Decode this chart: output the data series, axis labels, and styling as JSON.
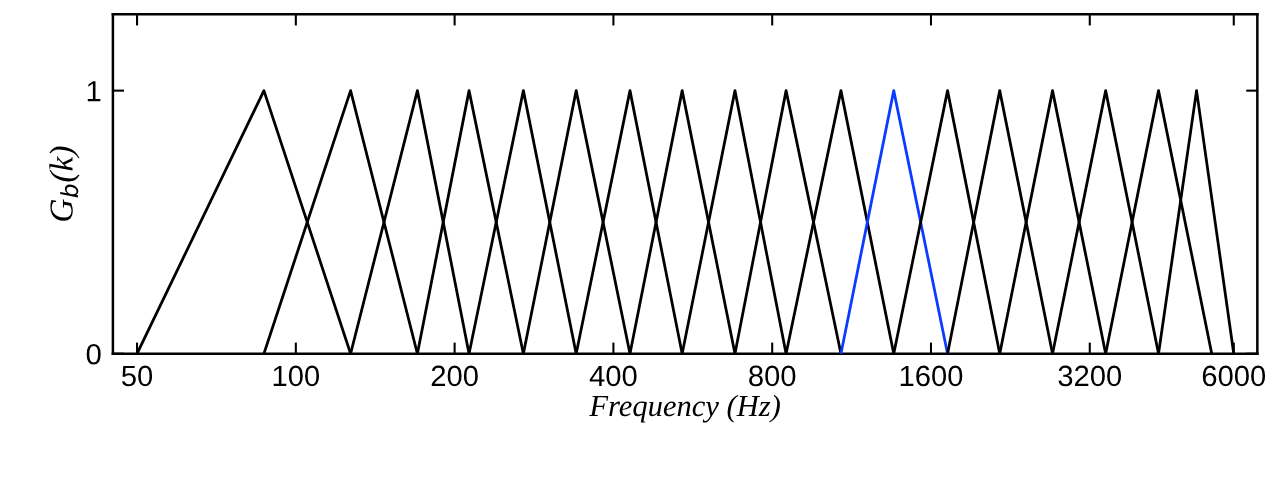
{
  "chart_data": {
    "type": "line",
    "xlabel": "Frequency (Hz)",
    "ylabel": "G$_{b}$(k)",
    "log": "x",
    "xlim": [
      45,
      6650
    ],
    "xticks": [
      50,
      100,
      200,
      400,
      800,
      1600,
      3200,
      6000
    ],
    "ylim": [
      0,
      1.29
    ],
    "yticks": [
      0,
      1
    ],
    "grid": false,
    "legend": false,
    "marker": "none",
    "line_style": "solid",
    "series": [
      {
        "color": "#000000",
        "x": [
          50,
          87,
          127
        ],
        "values": [
          0,
          1,
          0
        ]
      },
      {
        "color": "#000000",
        "x": [
          87,
          127,
          170
        ],
        "values": [
          0,
          1,
          0
        ]
      },
      {
        "color": "#000000",
        "x": [
          127,
          170,
          213
        ],
        "values": [
          0,
          1,
          0
        ]
      },
      {
        "color": "#000000",
        "x": [
          170,
          213,
          270
        ],
        "values": [
          0,
          1,
          0
        ]
      },
      {
        "color": "#000000",
        "x": [
          213,
          270,
          340
        ],
        "values": [
          0,
          1,
          0
        ]
      },
      {
        "color": "#000000",
        "x": [
          270,
          340,
          430
        ],
        "values": [
          0,
          1,
          0
        ]
      },
      {
        "color": "#000000",
        "x": [
          340,
          430,
          540
        ],
        "values": [
          0,
          1,
          0
        ]
      },
      {
        "color": "#000000",
        "x": [
          430,
          540,
          680
        ],
        "values": [
          0,
          1,
          0
        ]
      },
      {
        "color": "#000000",
        "x": [
          540,
          680,
          850
        ],
        "values": [
          0,
          1,
          0
        ]
      },
      {
        "color": "#000000",
        "x": [
          680,
          850,
          1080
        ],
        "values": [
          0,
          1,
          0
        ]
      },
      {
        "color": "#000000",
        "x": [
          850,
          1080,
          1360
        ],
        "values": [
          0,
          1,
          0
        ]
      },
      {
        "color": "#0a3cff",
        "x": [
          1080,
          1360,
          1720
        ],
        "values": [
          0,
          1,
          0
        ]
      },
      {
        "color": "#000000",
        "x": [
          1360,
          1720,
          2160
        ],
        "values": [
          0,
          1,
          0
        ]
      },
      {
        "color": "#000000",
        "x": [
          1720,
          2160,
          2720
        ],
        "values": [
          0,
          1,
          0
        ]
      },
      {
        "color": "#000000",
        "x": [
          2160,
          2720,
          3430
        ],
        "values": [
          0,
          1,
          0
        ]
      },
      {
        "color": "#000000",
        "x": [
          2720,
          3430,
          4320
        ],
        "values": [
          0,
          1,
          0
        ]
      },
      {
        "color": "#000000",
        "x": [
          3430,
          4320,
          5450
        ],
        "values": [
          0,
          1,
          0
        ]
      },
      {
        "color": "#000000",
        "x": [
          4320,
          5100,
          6000
        ],
        "values": [
          0,
          1,
          0
        ]
      }
    ]
  }
}
